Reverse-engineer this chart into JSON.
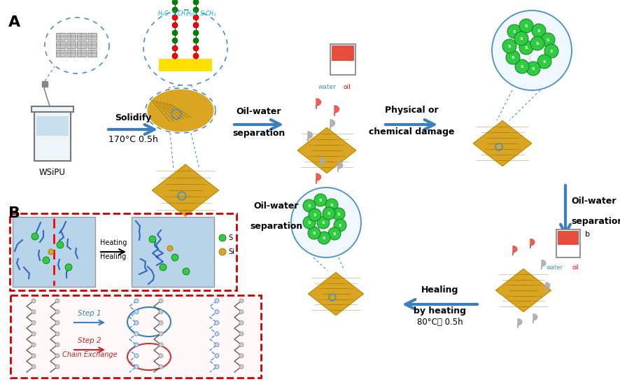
{
  "figsize": [
    8.86,
    5.46
  ],
  "dpi": 100,
  "bg_color": "#ffffff",
  "arrow_color": "#3a7fc1",
  "yellow_fabric": "#DAA520",
  "yellow_bright": "#FFE000",
  "green_ball": "#2ECC40",
  "red_drop": "#e74c3c",
  "gray_drop": "#aaaaaa",
  "blue_dash": "#4a90c4",
  "red_box": "#cc0000",
  "blue_bg": "#b8d4e8",
  "label_A": "A",
  "label_B": "B",
  "WSiPU": "WSiPU",
  "solidify": "Solidify",
  "solidify_cond": "170°C 0.5h",
  "oil_water_sep": "Oil-water\nseparation",
  "phys_chem": "Physical or\nchemical damage",
  "healing": "Healing\nby heating",
  "healing_cond": "80°C， 0.5h",
  "water_lbl": "water",
  "oil_lbl": "oil",
  "b_lbl": "b",
  "heating_lbl1": "Heating",
  "heating_lbl2": "Healing",
  "step1_lbl": "Step 1",
  "step2_lbl": "Step 2",
  "chain_exchange": "Chain Exchange",
  "S_lbl": "S",
  "Si_lbl": "Si"
}
